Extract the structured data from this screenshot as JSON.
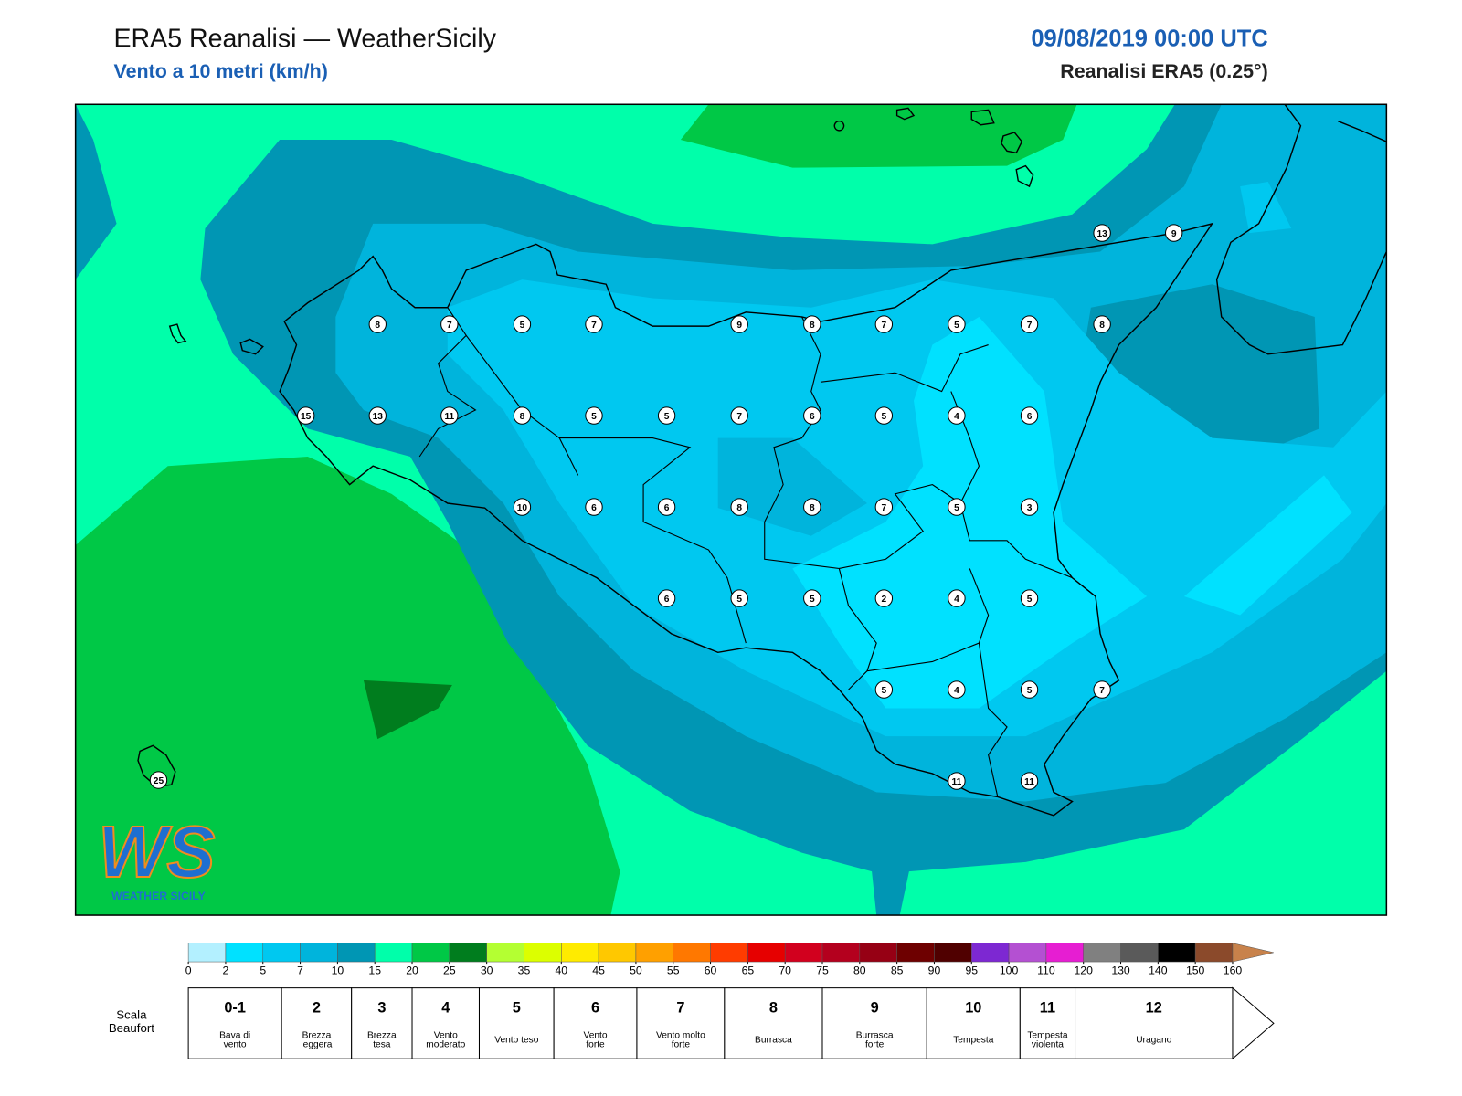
{
  "header": {
    "title": "ERA5 Reanalisi — WeatherSicily",
    "subtitle": "Vento a 10 metri (km/h)",
    "date": "09/08/2019 00:00 UTC",
    "source": "Reanalisi ERA5 (0.25°)"
  },
  "stations": [
    8,
    7,
    5,
    7,
    9,
    8,
    7,
    5,
    7,
    8,
    13,
    9,
    15,
    13,
    11,
    8,
    5,
    5,
    7,
    6,
    5,
    4,
    6,
    10,
    6,
    6,
    8,
    8,
    7,
    5,
    3,
    6,
    5,
    5,
    2,
    4,
    5,
    5,
    4,
    5,
    7,
    11,
    11,
    25
  ],
  "colorbar": {
    "ticks": [
      0,
      2,
      5,
      7,
      10,
      15,
      20,
      25,
      30,
      35,
      40,
      45,
      50,
      55,
      60,
      65,
      70,
      75,
      80,
      85,
      90,
      95,
      100,
      110,
      120,
      130,
      140,
      150,
      160
    ],
    "colors": [
      "#b3f0ff",
      "#00e1ff",
      "#00c8f0",
      "#00b4dc",
      "#0096b4",
      "#00ffaa",
      "#00c846",
      "#007d1e",
      "#b4ff32",
      "#dcff00",
      "#ffeb00",
      "#ffc800",
      "#ffa000",
      "#ff7800",
      "#ff3c00",
      "#e60000",
      "#d2001e",
      "#b4001e",
      "#960014",
      "#6e0000",
      "#500000",
      "#7d28d2",
      "#b450d2",
      "#e61ed2",
      "#808080",
      "#5a5a5a",
      "#000000",
      "#8b4a2b"
    ],
    "over_color": "#c8824b"
  },
  "beaufort": {
    "label": [
      "Scala",
      "Beaufort"
    ],
    "entries": [
      {
        "force": "0-1",
        "desc": [
          "Bava di",
          "vento"
        ]
      },
      {
        "force": "2",
        "desc": [
          "Brezza",
          "leggera"
        ]
      },
      {
        "force": "3",
        "desc": [
          "Brezza",
          "tesa"
        ]
      },
      {
        "force": "4",
        "desc": [
          "Vento",
          "moderato"
        ]
      },
      {
        "force": "5",
        "desc": [
          "Vento teso"
        ]
      },
      {
        "force": "6",
        "desc": [
          "Vento",
          "forte"
        ]
      },
      {
        "force": "7",
        "desc": [
          "Vento molto",
          "forte"
        ]
      },
      {
        "force": "8",
        "desc": [
          "Burrasca"
        ]
      },
      {
        "force": "9",
        "desc": [
          "Burrasca",
          "forte"
        ]
      },
      {
        "force": "10",
        "desc": [
          "Tempesta"
        ]
      },
      {
        "force": "11",
        "desc": [
          "Tempesta",
          "violenta"
        ]
      },
      {
        "force": "12",
        "desc": [
          "Uragano"
        ]
      }
    ]
  },
  "logo": {
    "mark": "WS",
    "text": "WEATHER SICILY"
  }
}
